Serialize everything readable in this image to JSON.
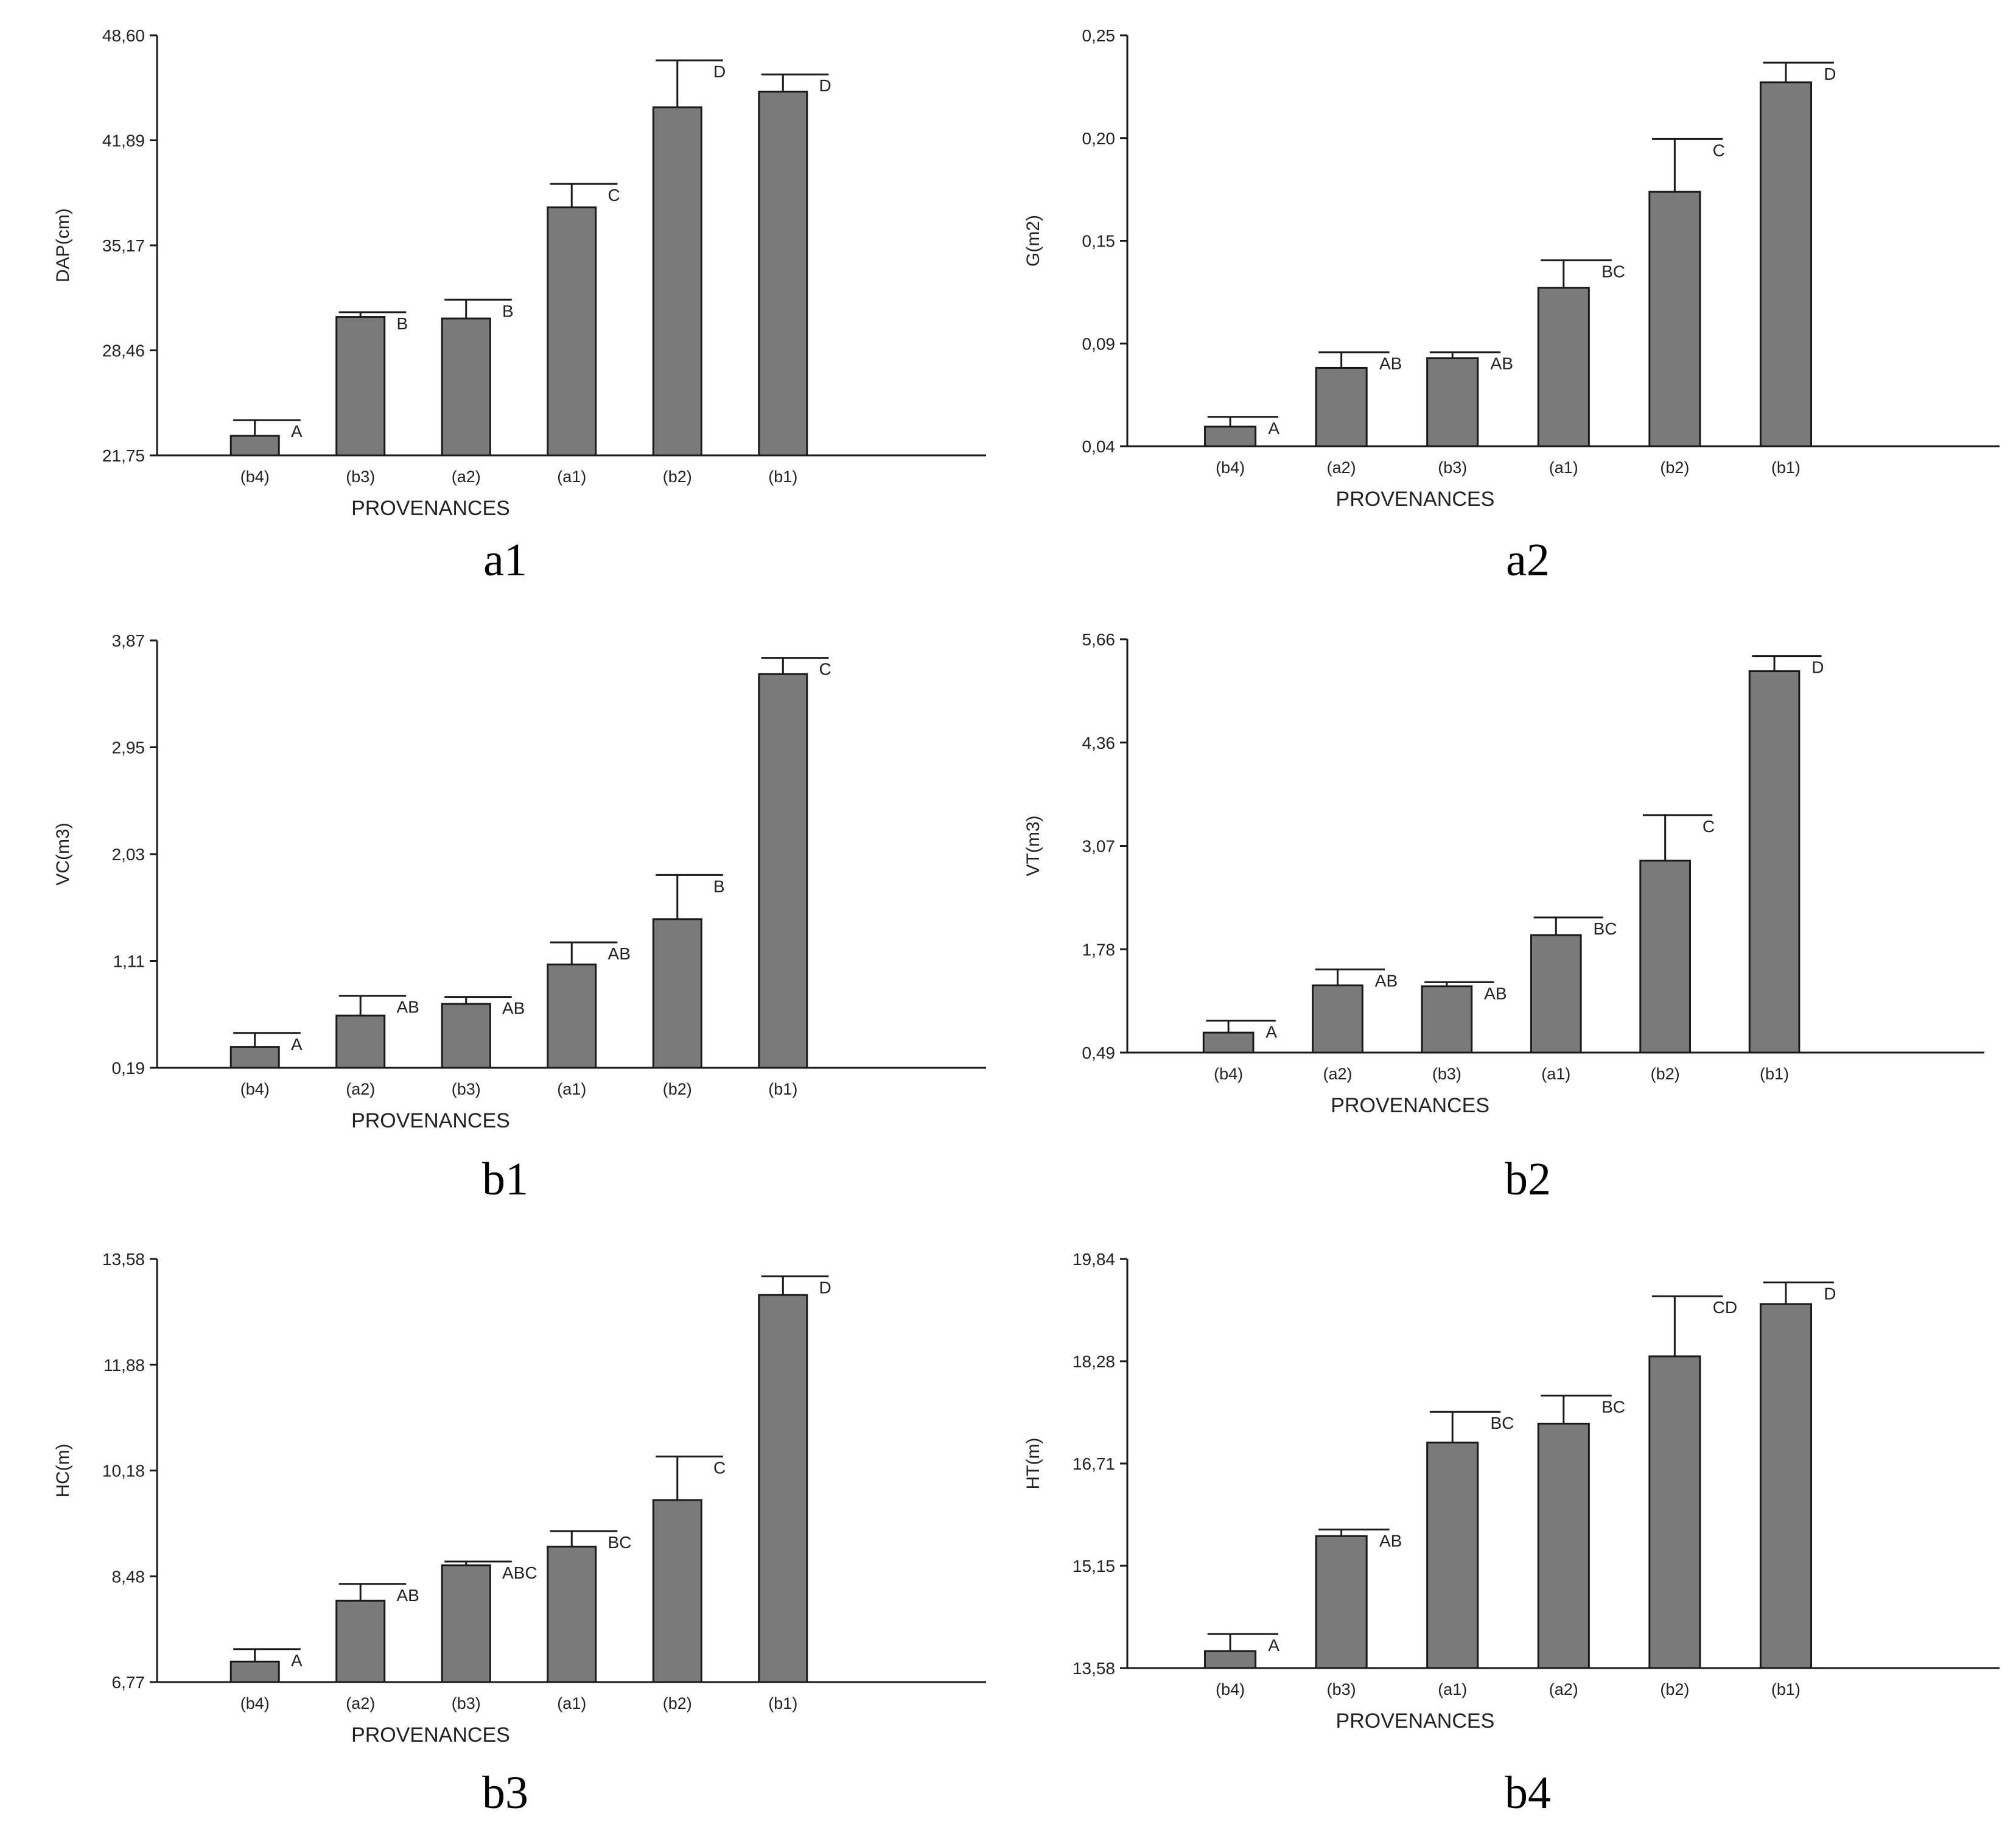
{
  "chart_data": [
    {
      "type": "bar",
      "panel_label": "a1",
      "ylabel": "DAP(cm)",
      "xlabel": "PROVENANCES",
      "y_ticks": [
        "21,75",
        "28,46",
        "35,17",
        "41,89",
        "48,60"
      ],
      "ylim": [
        21.75,
        48.6
      ],
      "categories": [
        "(b4)",
        "(b3)",
        "(a2)",
        "(a1)",
        "(b2)",
        "(b1)"
      ],
      "values": [
        23.0,
        30.6,
        30.5,
        37.6,
        44.0,
        45.0
      ],
      "error_upper": [
        24.0,
        30.9,
        31.7,
        39.1,
        47.0,
        46.1
      ],
      "group_letters": [
        "A",
        "B",
        "B",
        "C",
        "D",
        "D"
      ]
    },
    {
      "type": "bar",
      "panel_label": "a2",
      "ylabel": "G(m2)",
      "xlabel": "PROVENANCES",
      "y_ticks": [
        "0,04",
        "0,09",
        "0,15",
        "0,20",
        "0,25"
      ],
      "ylim": [
        0.04,
        0.25
      ],
      "categories": [
        "(b4)",
        "(a2)",
        "(b3)",
        "(a1)",
        "(b2)",
        "(b1)"
      ],
      "values": [
        0.05,
        0.08,
        0.085,
        0.121,
        0.17,
        0.226
      ],
      "error_upper": [
        0.055,
        0.088,
        0.088,
        0.135,
        0.197,
        0.236
      ],
      "group_letters": [
        "A",
        "AB",
        "AB",
        "BC",
        "C",
        "D"
      ]
    },
    {
      "type": "bar",
      "panel_label": "b1",
      "ylabel": "VC(m3)",
      "xlabel": "PROVENANCES",
      "y_ticks": [
        "0,19",
        "1,11",
        "2,03",
        "2,95",
        "3,87"
      ],
      "ylim": [
        0.19,
        3.87
      ],
      "categories": [
        "(b4)",
        "(a2)",
        "(b3)",
        "(a1)",
        "(b2)",
        "(b1)"
      ],
      "values": [
        0.37,
        0.64,
        0.74,
        1.08,
        1.47,
        3.58
      ],
      "error_upper": [
        0.49,
        0.81,
        0.8,
        1.27,
        1.85,
        3.72
      ],
      "group_letters": [
        "A",
        "AB",
        "AB",
        "AB",
        "B",
        "C"
      ]
    },
    {
      "type": "bar",
      "panel_label": "b2",
      "ylabel": "VT(m3)",
      "xlabel": "PROVENANCES",
      "y_ticks": [
        "0,49",
        "1,78",
        "3,07",
        "4,36",
        "5,66"
      ],
      "ylim": [
        0.49,
        5.66
      ],
      "categories": [
        "(b4)",
        "(a2)",
        "(b3)",
        "(a1)",
        "(b2)",
        "(b1)"
      ],
      "values": [
        0.74,
        1.33,
        1.32,
        1.96,
        2.89,
        5.26
      ],
      "error_upper": [
        0.89,
        1.53,
        1.37,
        2.18,
        3.46,
        5.45
      ],
      "group_letters": [
        "A",
        "AB",
        "AB",
        "BC",
        "C",
        "D"
      ]
    },
    {
      "type": "bar",
      "panel_label": "b3",
      "ylabel": "HC(m)",
      "xlabel": "PROVENANCES",
      "y_ticks": [
        "6,77",
        "8,48",
        "10,18",
        "11,88",
        "13,58"
      ],
      "ylim": [
        6.77,
        13.58
      ],
      "categories": [
        "(b4)",
        "(a2)",
        "(b3)",
        "(a1)",
        "(b2)",
        "(b1)"
      ],
      "values": [
        7.1,
        8.08,
        8.65,
        8.95,
        9.7,
        13.0
      ],
      "error_upper": [
        7.3,
        8.35,
        8.71,
        9.2,
        10.4,
        13.3
      ],
      "group_letters": [
        "A",
        "AB",
        "ABC",
        "BC",
        "C",
        "D"
      ]
    },
    {
      "type": "bar",
      "panel_label": "b4",
      "ylabel": "HT(m)",
      "xlabel": "PROVENANCES",
      "y_ticks": [
        "13,58",
        "15,15",
        "16,71",
        "18,28",
        "19,84"
      ],
      "ylim": [
        13.58,
        19.84
      ],
      "categories": [
        "(b4)",
        "(b3)",
        "(a1)",
        "(a2)",
        "(b2)",
        "(b1)"
      ],
      "values": [
        13.84,
        15.6,
        17.03,
        17.32,
        18.35,
        19.15
      ],
      "error_upper": [
        14.1,
        15.7,
        17.5,
        17.75,
        19.27,
        19.48
      ],
      "group_letters": [
        "A",
        "AB",
        "BC",
        "BC",
        "CD",
        "D"
      ]
    }
  ],
  "colors": {
    "bar_fill": "#7a7a7a",
    "bar_stroke": "#1a1a1a",
    "axis": "#1a1a1a",
    "text": "#222222"
  }
}
